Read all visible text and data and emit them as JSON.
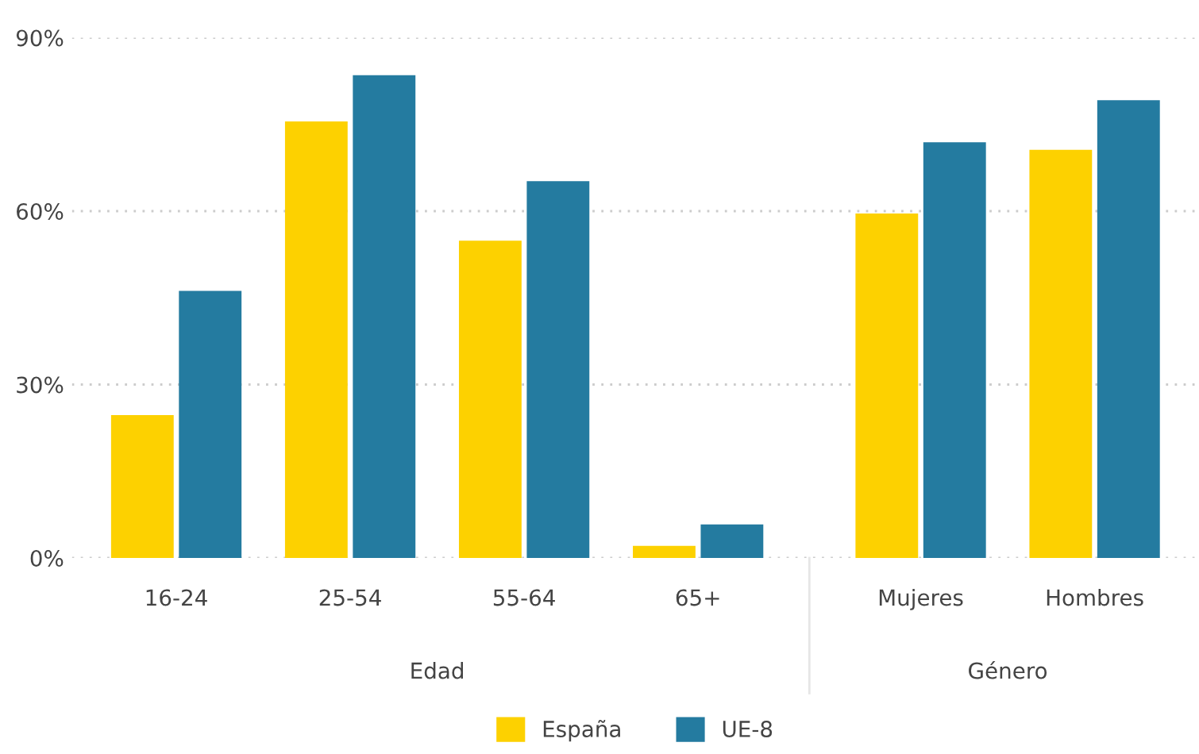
{
  "chart_data": {
    "type": "bar",
    "categories": [
      "16-24",
      "25-54",
      "55-64",
      "65+",
      "Mujeres",
      "Hombres"
    ],
    "series": [
      {
        "name": "España",
        "color": "#fdd100",
        "values": [
          24.7,
          75.5,
          54.9,
          2.1,
          59.6,
          70.6
        ]
      },
      {
        "name": "UE-8",
        "color": "#247ba0",
        "values": [
          46.2,
          83.5,
          65.2,
          5.8,
          71.9,
          79.2
        ]
      }
    ],
    "ylim": [
      0,
      90
    ],
    "yticks": [
      {
        "value": 0,
        "label": "0%"
      },
      {
        "value": 30,
        "label": "30%"
      },
      {
        "value": 60,
        "label": "60%"
      },
      {
        "value": 90,
        "label": "90%"
      }
    ],
    "grid": "y",
    "legend": "bottom",
    "annotations": [
      "Edad",
      "Género"
    ]
  }
}
